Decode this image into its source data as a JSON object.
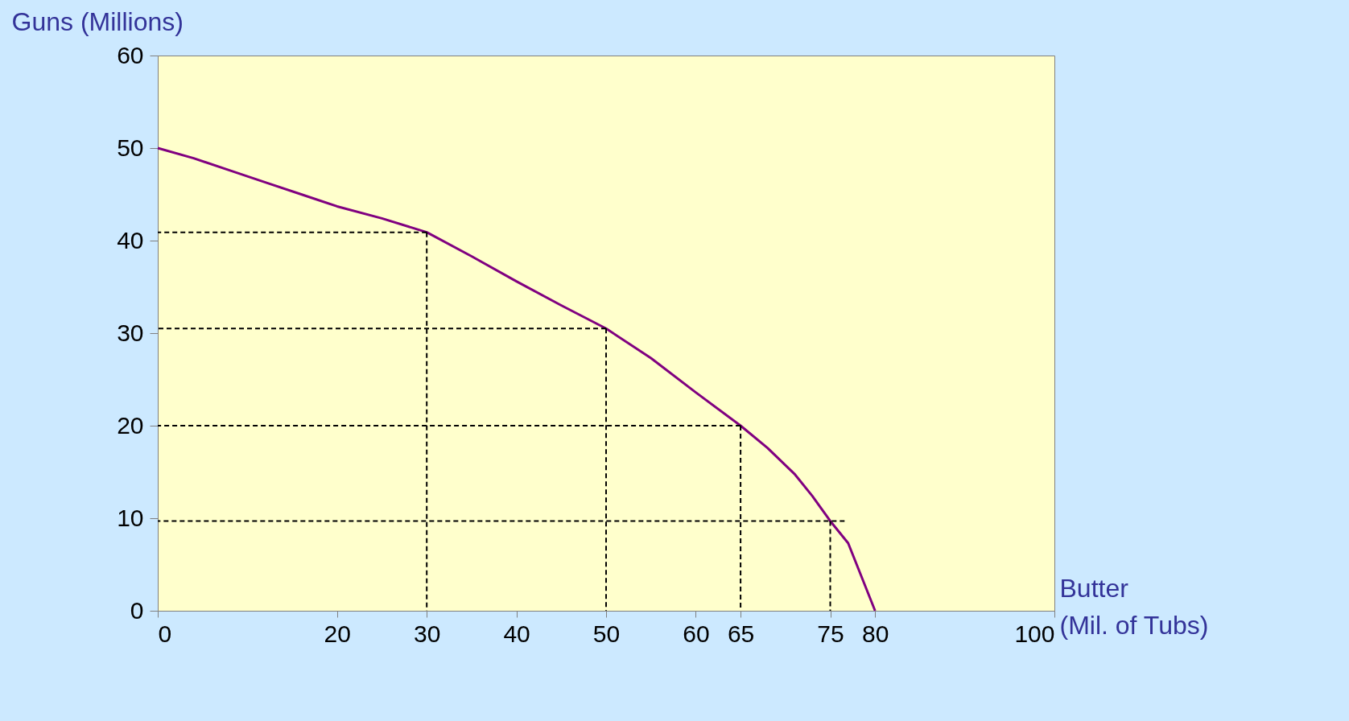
{
  "chart_data": {
    "type": "line",
    "xlabel": "Butter (Mil. of Tubs)",
    "ylabel": "Guns (Millions)",
    "xlim": [
      0,
      100
    ],
    "ylim": [
      0,
      60
    ],
    "xticks": [
      0,
      20,
      30,
      40,
      50,
      60,
      65,
      75,
      80,
      100
    ],
    "yticks": [
      0,
      10,
      20,
      30,
      40,
      50,
      60
    ],
    "grid": false,
    "marker": "none",
    "series": [
      {
        "color": "#800080",
        "line_style": "solid",
        "x": [
          0,
          4,
          8,
          12,
          16,
          20,
          25,
          30,
          35,
          40,
          45,
          50,
          55,
          60,
          65,
          68,
          71,
          73,
          75,
          77,
          80
        ],
        "values": [
          50,
          48.9,
          47.6,
          46.3,
          45,
          43.7,
          42.4,
          40.9,
          38.3,
          35.6,
          33,
          30.5,
          27.3,
          23.6,
          20,
          17.6,
          14.8,
          12.4,
          9.7,
          7.3,
          0
        ]
      },
      {
        "color": "#000000",
        "line_style": "dashed",
        "x": [
          30,
          0
        ],
        "values": [
          40.9,
          40.9
        ]
      },
      {
        "color": "#000000",
        "line_style": "dashed",
        "x": [
          30,
          30
        ],
        "values": [
          40.9,
          0
        ]
      },
      {
        "color": "#000000",
        "line_style": "dashed",
        "x": [
          50,
          0
        ],
        "values": [
          30.5,
          30.5
        ]
      },
      {
        "color": "#000000",
        "line_style": "dashed",
        "x": [
          50,
          50
        ],
        "values": [
          30.5,
          0
        ]
      },
      {
        "color": "#000000",
        "line_style": "dashed",
        "x": [
          65,
          0
        ],
        "values": [
          20,
          20
        ]
      },
      {
        "color": "#000000",
        "line_style": "dashed",
        "x": [
          65,
          65
        ],
        "values": [
          20,
          0
        ]
      },
      {
        "color": "#000000",
        "line_style": "dashed",
        "x": [
          76.6,
          0
        ],
        "values": [
          9.7,
          9.7
        ]
      },
      {
        "color": "#000000",
        "line_style": "dashed",
        "x": [
          75,
          75
        ],
        "values": [
          9.7,
          0
        ]
      }
    ]
  }
}
